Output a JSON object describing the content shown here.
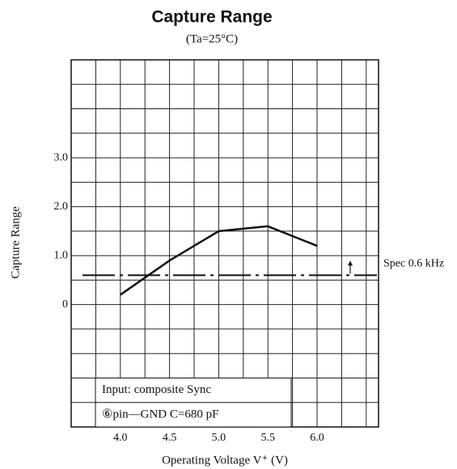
{
  "chart_data": {
    "type": "line",
    "title": "Capture Range",
    "subtitle": "(Ta=25°C)",
    "x_label": "Operating Voltage V⁺ (V)",
    "y_label": "Capture Range",
    "x": [
      4.0,
      4.5,
      5.0,
      5.5,
      6.0
    ],
    "series": [
      {
        "name": "Capture Range",
        "color": "#111111",
        "values": [
          0.2,
          0.9,
          1.5,
          1.6,
          1.2
        ]
      }
    ],
    "xlim": [
      3.5,
      6.625
    ],
    "ylim": [
      -2.5,
      5.0
    ],
    "xticks": [
      {
        "value": 4,
        "label": "4.0"
      },
      4.5,
      {
        "value": 5,
        "label": "5.0"
      },
      5.5,
      {
        "value": 6,
        "label": "6.0"
      }
    ],
    "yticks": [
      0,
      {
        "value": 1,
        "label": "1.0"
      },
      {
        "value": 2,
        "label": "2.0"
      },
      {
        "value": 3,
        "label": "3.0"
      }
    ],
    "xgrid": [
      3.75,
      4.0,
      4.25,
      4.5,
      4.75,
      5.0,
      5.25,
      5.5,
      5.75,
      6.0,
      6.25,
      6.5
    ],
    "ygrid": [
      -2.0,
      -1.5,
      -1.0,
      -0.5,
      0,
      0.5,
      1.0,
      1.5,
      2.0,
      2.5,
      3.0,
      3.5,
      4.0,
      4.5
    ],
    "spec": {
      "value": 0.6,
      "label": "Spec 0.6 kHz"
    },
    "annotation": [
      "Input:  composite Sync",
      "⑥pin—GND    C=680 pF"
    ]
  }
}
